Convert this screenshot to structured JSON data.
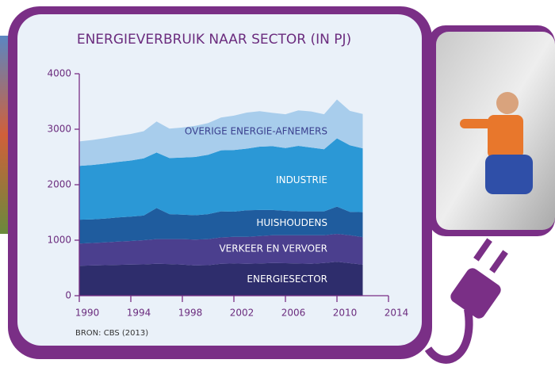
{
  "chart_data": {
    "type": "stacked-area",
    "title": "ENERGIEVERBRUIK NAAR SECTOR (IN PJ)",
    "source": "BRON: CBS (2013)",
    "x": [
      1990,
      1991,
      1992,
      1993,
      1994,
      1995,
      1996,
      1997,
      1998,
      1999,
      2000,
      2001,
      2002,
      2003,
      2004,
      2005,
      2006,
      2007,
      2008,
      2009,
      2010,
      2011,
      2012
    ],
    "series": [
      {
        "name": "ENERGIESECTOR",
        "color": "#2e2d6c",
        "values": [
          540,
          545,
          550,
          555,
          560,
          565,
          575,
          570,
          560,
          545,
          550,
          575,
          580,
          575,
          580,
          590,
          585,
          580,
          575,
          590,
          610,
          585,
          560
        ]
      },
      {
        "name": "VERKEER EN VERVOER",
        "color": "#4b3f8e",
        "values": [
          400,
          405,
          410,
          420,
          425,
          435,
          445,
          450,
          460,
          465,
          470,
          475,
          480,
          485,
          495,
          500,
          505,
          510,
          515,
          500,
          505,
          505,
          495
        ]
      },
      {
        "name": "HUISHOUDENS",
        "color": "#1f5c9e",
        "values": [
          430,
          425,
          430,
          435,
          440,
          445,
          560,
          450,
          440,
          440,
          450,
          470,
          455,
          480,
          470,
          455,
          440,
          430,
          430,
          430,
          490,
          420,
          450
        ]
      },
      {
        "name": "INDUSTRIE",
        "color": "#2b98d6",
        "values": [
          970,
          980,
          990,
          1000,
          1010,
          1030,
          1000,
          1010,
          1030,
          1050,
          1070,
          1100,
          1110,
          1110,
          1140,
          1150,
          1130,
          1180,
          1150,
          1120,
          1230,
          1200,
          1150
        ]
      },
      {
        "name": "OVERIGE ENERGIE-AFNEMERS",
        "color": "#a8cdec",
        "values": [
          440,
          450,
          460,
          470,
          480,
          490,
          560,
          530,
          540,
          560,
          570,
          590,
          620,
          650,
          640,
          600,
          610,
          640,
          650,
          630,
          700,
          620,
          620
        ]
      }
    ],
    "xlim": [
      1990,
      2014
    ],
    "xticks": [
      1990,
      1994,
      1998,
      2002,
      2006,
      2010,
      2014
    ],
    "ylim": [
      0,
      4000
    ],
    "yticks": [
      0,
      1000,
      2000,
      3000,
      4000
    ]
  }
}
